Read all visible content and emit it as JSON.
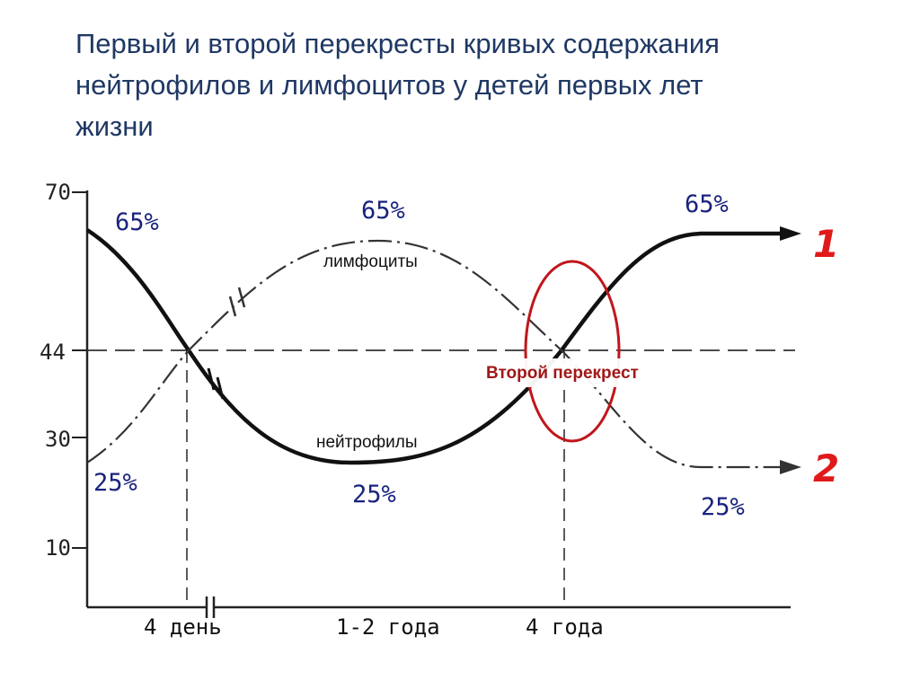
{
  "title_lines": [
    "Первый и второй перекресты кривых содержания",
    "нейтрофилов и лимфоцитов у детей первых лет",
    "жизни"
  ],
  "chart_data": {
    "type": "line",
    "y_ticks": [
      "70",
      "44",
      "30",
      "10"
    ],
    "x_ticks": [
      "4 день",
      "1-2 года",
      "4 года"
    ],
    "ylim": [
      0,
      70
    ],
    "series": [
      {
        "name": "нейтрофилы",
        "marker": "1",
        "points": [
          {
            "x": 0,
            "y": 65
          },
          {
            "x": 5,
            "y": 60
          },
          {
            "x": 15,
            "y": 44
          },
          {
            "x": 30,
            "y": 32
          },
          {
            "x": 50,
            "y": 25
          },
          {
            "x": 68,
            "y": 30
          },
          {
            "x": 80,
            "y": 44
          },
          {
            "x": 90,
            "y": 58
          },
          {
            "x": 100,
            "y": 65
          },
          {
            "x": 120,
            "y": 65
          }
        ]
      },
      {
        "name": "лимфоциты",
        "marker": "2",
        "points": [
          {
            "x": 0,
            "y": 25
          },
          {
            "x": 5,
            "y": 30
          },
          {
            "x": 15,
            "y": 44
          },
          {
            "x": 30,
            "y": 58
          },
          {
            "x": 50,
            "y": 65
          },
          {
            "x": 68,
            "y": 58
          },
          {
            "x": 80,
            "y": 44
          },
          {
            "x": 90,
            "y": 32
          },
          {
            "x": 100,
            "y": 25
          },
          {
            "x": 120,
            "y": 25
          }
        ]
      }
    ],
    "percent_labels": [
      "65%",
      "65%",
      "65%",
      "25%",
      "25%",
      "25%"
    ],
    "reference_line_y": 44,
    "callout": "Второй перекрест"
  },
  "colors": {
    "title": "#1f3864",
    "percent": "#1a237e",
    "marker": "#e01a1a",
    "callout": "#a01818"
  }
}
